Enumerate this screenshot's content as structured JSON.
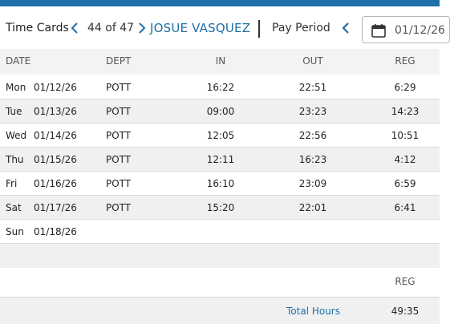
{
  "header": {
    "title": "Time Cards",
    "count": "44 of 47",
    "employee_name": "JOSUE VASQUEZ",
    "pay_period_label": "Pay Period",
    "date": "01/12/26"
  },
  "columns": {
    "date": "DATE",
    "dept": "DEPT",
    "in": "IN",
    "out": "OUT",
    "reg": "REG"
  },
  "rows": [
    {
      "day": "Mon",
      "date": "01/12/26",
      "dept": "POTT",
      "in": "16:22",
      "out": "22:51",
      "reg": "6:29"
    },
    {
      "day": "Tue",
      "date": "01/13/26",
      "dept": "POTT",
      "in": "09:00",
      "out": "23:23",
      "reg": "14:23"
    },
    {
      "day": "Wed",
      "date": "01/14/26",
      "dept": "POTT",
      "in": "12:05",
      "out": "22:56",
      "reg": "10:51"
    },
    {
      "day": "Thu",
      "date": "01/15/26",
      "dept": "POTT",
      "in": "12:11",
      "out": "16:23",
      "reg": "4:12"
    },
    {
      "day": "Fri",
      "date": "01/16/26",
      "dept": "POTT",
      "in": "16:10",
      "out": "23:09",
      "reg": "6:59"
    },
    {
      "day": "Sat",
      "date": "01/17/26",
      "dept": "POTT",
      "in": "15:20",
      "out": "22:01",
      "reg": "6:41"
    },
    {
      "day": "Sun",
      "date": "01/18/26",
      "dept": "",
      "in": "",
      "out": "",
      "reg": ""
    }
  ],
  "footer": {
    "reg_label": "REG",
    "total_label": "Total Hours",
    "total_value": "49:35"
  },
  "colors": {
    "accent": "#1e6fa8",
    "link": "#1d6fa6",
    "stripe": "#f0f0f0"
  },
  "icons": {
    "prev": "chevron-left-icon",
    "next": "chevron-right-icon",
    "calendar": "calendar-icon"
  }
}
